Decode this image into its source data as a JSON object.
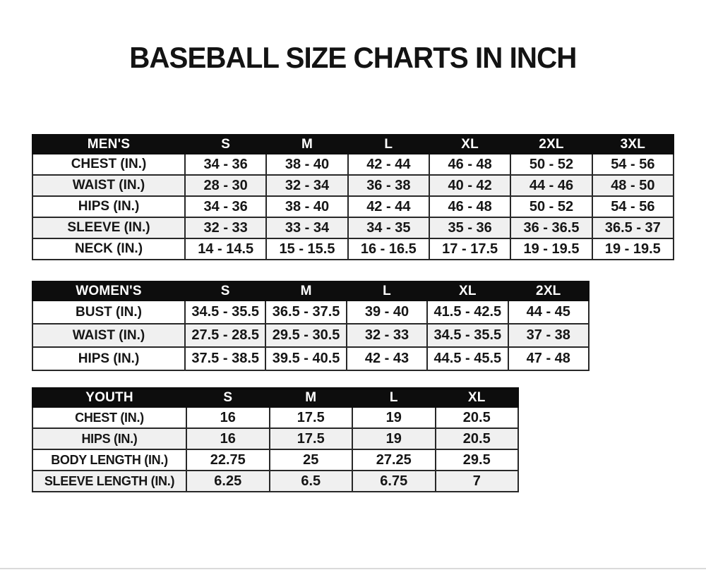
{
  "title": "BASEBALL SIZE CHARTS IN INCH",
  "colors": {
    "header_bg": "#0d0d0d",
    "header_text": "#ffffff",
    "row_stripe": "#f0f0f0",
    "border": "#282828"
  },
  "chart_data": [
    {
      "type": "table",
      "title": "MEN'S",
      "columns": [
        "MEN'S",
        "S",
        "M",
        "L",
        "XL",
        "2XL",
        "3XL"
      ],
      "rows": [
        [
          "CHEST (IN.)",
          "34 - 36",
          "38 - 40",
          "42 - 44",
          "46 - 48",
          "50 - 52",
          "54 - 56"
        ],
        [
          "WAIST (IN.)",
          "28 - 30",
          "32 - 34",
          "36 - 38",
          "40 - 42",
          "44 - 46",
          "48 - 50"
        ],
        [
          "HIPS (IN.)",
          "34 - 36",
          "38 - 40",
          "42 - 44",
          "46 - 48",
          "50 - 52",
          "54 - 56"
        ],
        [
          "SLEEVE (IN.)",
          "32 - 33",
          "33 - 34",
          "34 - 35",
          "35 - 36",
          "36 - 36.5",
          "36.5 - 37"
        ],
        [
          "NECK (IN.)",
          "14 - 14.5",
          "15 - 15.5",
          "16 - 16.5",
          "17 - 17.5",
          "19 - 19.5",
          "19 - 19.5"
        ]
      ]
    },
    {
      "type": "table",
      "title": "WOMEN'S",
      "columns": [
        "WOMEN'S",
        "S",
        "M",
        "L",
        "XL",
        "2XL"
      ],
      "rows": [
        [
          "BUST (IN.)",
          "34.5 - 35.5",
          "36.5 - 37.5",
          "39 - 40",
          "41.5 - 42.5",
          "44 - 45"
        ],
        [
          "WAIST (IN.)",
          "27.5 - 28.5",
          "29.5 - 30.5",
          "32 - 33",
          "34.5 - 35.5",
          "37 - 38"
        ],
        [
          "HIPS (IN.)",
          "37.5 - 38.5",
          "39.5 - 40.5",
          "42 - 43",
          "44.5 - 45.5",
          "47 - 48"
        ]
      ]
    },
    {
      "type": "table",
      "title": "YOUTH",
      "columns": [
        "YOUTH",
        "S",
        "M",
        "L",
        "XL"
      ],
      "rows": [
        [
          "CHEST (IN.)",
          "16",
          "17.5",
          "19",
          "20.5"
        ],
        [
          "HIPS (IN.)",
          "16",
          "17.5",
          "19",
          "20.5"
        ],
        [
          "BODY LENGTH (IN.)",
          "22.75",
          "25",
          "27.25",
          "29.5"
        ],
        [
          "SLEEVE LENGTH (IN.)",
          "6.25",
          "6.5",
          "6.75",
          "7"
        ]
      ]
    }
  ]
}
